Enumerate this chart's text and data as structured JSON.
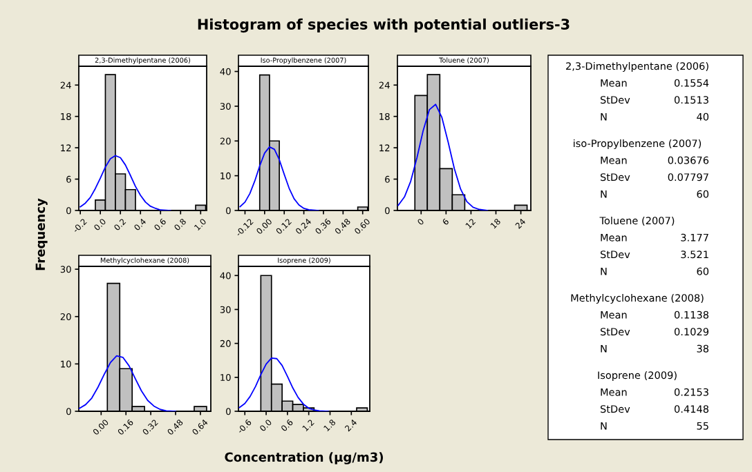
{
  "chart_data": [
    {
      "type": "histogram",
      "title": "Histogram of species with potential outliers-3",
      "subtitle": "2,3-Dimethylpentane (2006)",
      "ylabel": "Frequency",
      "xlim": [
        -0.215,
        1.06
      ],
      "ylim": [
        0,
        27.6
      ],
      "xticks": [
        -0.2,
        {
          "value": 0,
          "label": "0.0"
        },
        0.2,
        0.4,
        0.6,
        0.8,
        {
          "value": 1,
          "label": "1.0"
        }
      ],
      "yticks": [
        0,
        6,
        12,
        18,
        24
      ],
      "grid": false,
      "legend": false,
      "series": [
        {
          "type": "histogram",
          "color": "#c0c0c0",
          "bins": [
            -0.05,
            0.05,
            0.15,
            0.25,
            0.35,
            0.45,
            0.55,
            0.65,
            0.75,
            0.85,
            0.95,
            1.05
          ],
          "values": [
            2,
            26,
            7,
            4,
            0,
            0,
            0,
            0,
            0,
            0,
            1
          ]
        },
        {
          "type": "line",
          "color": "#0000ff",
          "x": [
            -0.2,
            -0.15,
            -0.1,
            -0.05,
            0,
            0.05,
            0.1,
            0.15,
            0.2,
            0.25,
            0.3,
            0.35,
            0.4,
            0.45,
            0.5,
            0.55,
            0.6,
            0.7
          ],
          "values": [
            0.7,
            1.4,
            2.5,
            4.2,
            6.2,
            8.3,
            9.9,
            10.5,
            10.1,
            8.7,
            6.7,
            4.6,
            2.9,
            1.6,
            0.8,
            0.4,
            0.1,
            0
          ]
        }
      ]
    },
    {
      "type": "histogram",
      "subtitle": "Iso-Propylbenzene (2007)",
      "xlim": [
        -0.16,
        0.635
      ],
      "ylim": [
        0,
        41.5
      ],
      "xticks": [
        -0.12,
        {
          "value": 0,
          "label": "0.00"
        },
        0.12,
        0.24,
        0.36,
        0.48,
        {
          "value": 0.6,
          "label": "0.60"
        }
      ],
      "yticks": [
        0,
        10,
        20,
        30,
        40
      ],
      "grid": false,
      "legend": false,
      "series": [
        {
          "type": "histogram",
          "color": "#c0c0c0",
          "bins": [
            -0.03,
            0.03,
            0.09,
            0.15,
            0.21,
            0.27,
            0.33,
            0.39,
            0.45,
            0.51,
            0.57,
            0.63
          ],
          "values": [
            39,
            20,
            0,
            0,
            0,
            0,
            0,
            0,
            0,
            0,
            1
          ]
        },
        {
          "type": "line",
          "color": "#0000ff",
          "x": [
            -0.15,
            -0.12,
            -0.09,
            -0.06,
            -0.03,
            0,
            0.03,
            0.06,
            0.09,
            0.12,
            0.15,
            0.18,
            0.21,
            0.24,
            0.27,
            0.33
          ],
          "values": [
            1.1,
            2.4,
            4.9,
            8.5,
            12.8,
            16.5,
            18.3,
            17.6,
            14.6,
            10.4,
            6.4,
            3.4,
            1.6,
            0.6,
            0.2,
            0
          ]
        }
      ]
    },
    {
      "type": "histogram",
      "subtitle": "Toluene (2007)",
      "xlim": [
        -5.7,
        26.4
      ],
      "ylim": [
        0,
        27.6
      ],
      "xticks": [
        0,
        6,
        12,
        18,
        24
      ],
      "yticks": [
        0,
        6,
        12,
        18,
        24
      ],
      "grid": false,
      "legend": false,
      "series": [
        {
          "type": "histogram",
          "color": "#c0c0c0",
          "bins": [
            -1.5,
            1.5,
            4.5,
            7.5,
            10.5,
            13.5,
            16.5,
            19.5,
            22.5,
            25.5
          ],
          "values": [
            22,
            26,
            8,
            3,
            0,
            0,
            0,
            0,
            1
          ]
        },
        {
          "type": "line",
          "color": "#0000ff",
          "x": [
            -5.5,
            -4,
            -2.5,
            -1,
            0.5,
            2,
            3.5,
            5,
            6.5,
            8,
            9.5,
            11,
            12.5,
            14,
            16
          ],
          "values": [
            1,
            2.6,
            5.6,
            10.1,
            15.3,
            19.3,
            20.3,
            17.8,
            13.1,
            8,
            4.1,
            1.7,
            0.6,
            0.2,
            0
          ]
        }
      ]
    },
    {
      "type": "histogram",
      "subtitle": "Methylcyclohexane (2008)",
      "xlim": [
        -0.144,
        0.707
      ],
      "ylim": [
        0,
        30.6
      ],
      "xticks": [
        {
          "value": 0,
          "label": "0.00"
        },
        0.16,
        0.32,
        0.48,
        0.64
      ],
      "yticks": [
        0,
        10,
        20,
        30
      ],
      "grid": false,
      "legend": false,
      "series": [
        {
          "type": "histogram",
          "color": "#c0c0c0",
          "bins": [
            0.04,
            0.12,
            0.2,
            0.28,
            0.36,
            0.44,
            0.52,
            0.6,
            0.68
          ],
          "values": [
            27,
            9,
            1,
            0,
            0,
            0,
            0,
            1
          ]
        },
        {
          "type": "line",
          "color": "#0000ff",
          "x": [
            -0.14,
            -0.1,
            -0.06,
            -0.02,
            0.02,
            0.06,
            0.1,
            0.14,
            0.18,
            0.22,
            0.26,
            0.3,
            0.34,
            0.38,
            0.42,
            0.48
          ],
          "values": [
            0.6,
            1.4,
            2.8,
            5.1,
            7.8,
            10.3,
            11.7,
            11.4,
            9.6,
            6.9,
            4.3,
            2.3,
            1.1,
            0.4,
            0.1,
            0
          ]
        }
      ]
    },
    {
      "type": "histogram",
      "subtitle": "Isoprene (2009)",
      "xlabel": "Concentration (µg/m3)",
      "xlim": [
        -0.78,
        2.92
      ],
      "ylim": [
        0,
        42.7
      ],
      "xticks": [
        -0.6,
        {
          "value": 0,
          "label": "0.0"
        },
        0.6,
        1.2,
        1.8,
        2.4
      ],
      "yticks": [
        0,
        10,
        20,
        30,
        40
      ],
      "grid": false,
      "legend": false,
      "series": [
        {
          "type": "histogram",
          "color": "#c0c0c0",
          "bins": [
            -0.15,
            0.15,
            0.45,
            0.75,
            1.05,
            1.35,
            1.65,
            1.95,
            2.25,
            2.55,
            2.85
          ],
          "values": [
            40,
            8,
            3,
            2,
            1,
            0,
            0,
            0,
            0,
            1
          ]
        },
        {
          "type": "line",
          "color": "#0000ff",
          "x": [
            -0.75,
            -0.6,
            -0.45,
            -0.3,
            -0.15,
            0,
            0.15,
            0.3,
            0.45,
            0.6,
            0.75,
            0.9,
            1.05,
            1.2,
            1.35,
            1.5,
            1.75
          ],
          "values": [
            1.1,
            2.3,
            4.4,
            7.3,
            10.8,
            13.9,
            15.7,
            15.5,
            13.5,
            10.3,
            6.9,
            4.1,
            2.1,
            0.9,
            0.4,
            0.1,
            0
          ]
        }
      ]
    },
    {
      "type": "other",
      "annotations": [
        "2,3-Dimethylpentane (2006)",
        "Mean",
        "0.1554",
        "StDev",
        "0.1513",
        "N",
        "40",
        "iso-Propylbenzene (2007)",
        "Mean",
        "0.03676",
        "StDev",
        "0.07797",
        "N",
        "60",
        "Toluene (2007)",
        "Mean",
        "3.177",
        "StDev",
        "3.521",
        "N",
        "60",
        "Methylcyclohexane (2008)",
        "Mean",
        "0.1138",
        "StDev",
        "0.1029",
        "N",
        "38",
        "Isoprene (2009)",
        "Mean",
        "0.2153",
        "StDev",
        "0.4148",
        "N",
        "55"
      ]
    }
  ]
}
